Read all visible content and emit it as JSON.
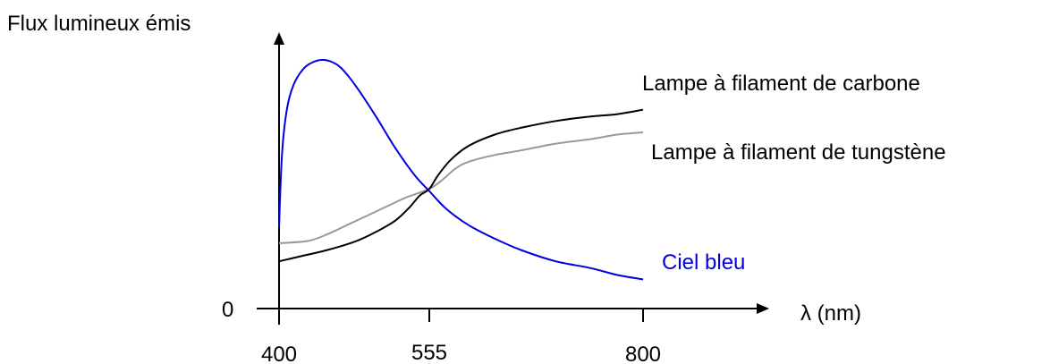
{
  "chart_data": {
    "type": "line",
    "ylabel": "Flux lumineux émis",
    "xlabel": "λ (nm)",
    "y_origin_label": "0",
    "x_ticks": [
      "400",
      "555",
      "800"
    ],
    "xlim": [
      400,
      800
    ],
    "ylim": [
      0,
      100
    ],
    "grid": false,
    "series": [
      {
        "name": "Ciel bleu",
        "color": "#0000dd",
        "x": [
          400,
          403,
          408,
          415,
          425,
          435,
          445,
          455,
          465,
          480,
          500,
          520,
          540,
          555,
          575,
          600,
          630,
          660,
          700,
          740,
          770,
          800
        ],
        "y": [
          26,
          58,
          78,
          89,
          96,
          99,
          100,
          99,
          96,
          88,
          75,
          61,
          49,
          42,
          34,
          27,
          21,
          16,
          11,
          8,
          5,
          3
        ]
      },
      {
        "name": "Lampe à filament de carbone",
        "color": "#000000",
        "x": [
          400,
          420,
          450,
          480,
          500,
          520,
          535,
          545,
          555,
          565,
          580,
          600,
          630,
          660,
          700,
          740,
          770,
          800
        ],
        "y": [
          11,
          13,
          16,
          20,
          24,
          29,
          35,
          40,
          43,
          49,
          56,
          62,
          67,
          70,
          73,
          75,
          76,
          78
        ]
      },
      {
        "name": "Lampe à filament de tungstène",
        "color": "#999999",
        "x": [
          400,
          430,
          450,
          470,
          490,
          510,
          530,
          555,
          570,
          585,
          600,
          630,
          660,
          700,
          740,
          770,
          800
        ],
        "y": [
          19,
          20,
          23,
          27,
          31,
          35,
          39,
          43,
          47,
          52,
          55,
          58,
          60,
          63,
          65,
          67,
          68
        ]
      }
    ]
  }
}
